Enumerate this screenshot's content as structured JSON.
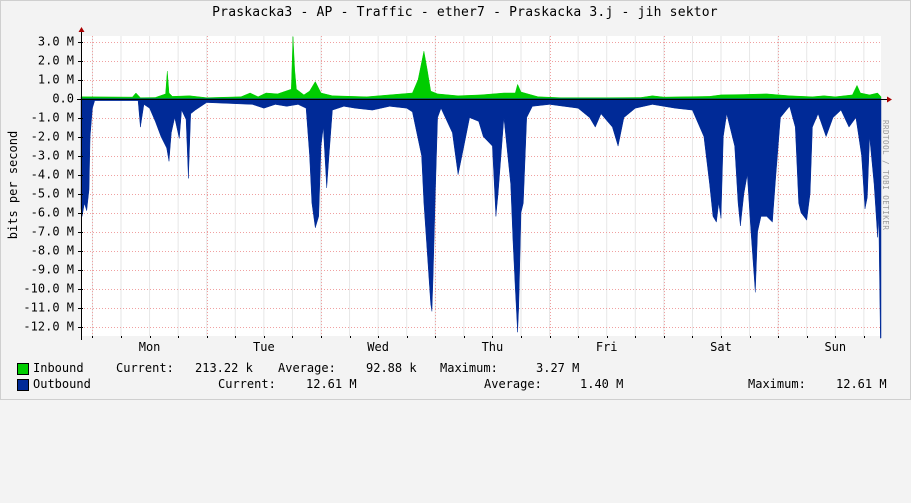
{
  "chart_data": {
    "type": "area",
    "title": "Praskacka3 - AP - Traffic - ether7 - Praskacka 3.j - jih sektor",
    "ylabel": "bits per second",
    "watermark": "RRDTOOL / TOBI OETIKER",
    "ylim": [
      -12.5,
      3.3
    ],
    "yticks": [
      {
        "value": 3,
        "label": "3.0 M"
      },
      {
        "value": 2,
        "label": "2.0 M"
      },
      {
        "value": 1,
        "label": "1.0 M"
      },
      {
        "value": 0,
        "label": "0.0"
      },
      {
        "value": -1,
        "label": "-1.0 M"
      },
      {
        "value": -2,
        "label": "-2.0 M"
      },
      {
        "value": -3,
        "label": "-3.0 M"
      },
      {
        "value": -4,
        "label": "-4.0 M"
      },
      {
        "value": -5,
        "label": "-5.0 M"
      },
      {
        "value": -6,
        "label": "-6.0 M"
      },
      {
        "value": -7,
        "label": "-7.0 M"
      },
      {
        "value": -8,
        "label": "-8.0 M"
      },
      {
        "value": -9,
        "label": "-9.0 M"
      },
      {
        "value": -10,
        "label": "-10.0 M"
      },
      {
        "value": -11,
        "label": "-11.0 M"
      },
      {
        "value": -12,
        "label": "-12.0 M"
      }
    ],
    "xlim": [
      0,
      7
    ],
    "days": [
      {
        "pos": 0.6,
        "label": "Mon"
      },
      {
        "pos": 1.6,
        "label": "Tue"
      },
      {
        "pos": 2.6,
        "label": "Wed"
      },
      {
        "pos": 3.6,
        "label": "Thu"
      },
      {
        "pos": 4.6,
        "label": "Fri"
      },
      {
        "pos": 5.6,
        "label": "Sat"
      },
      {
        "pos": 6.6,
        "label": "Sun"
      }
    ],
    "day_boundaries": [
      0.1,
      1.1,
      2.1,
      3.1,
      4.1,
      5.1,
      6.1
    ],
    "grid": true,
    "series": [
      {
        "name": "Inbound",
        "color": "#00cc00",
        "points": [
          [
            0,
            0.1
          ],
          [
            0.45,
            0.08
          ],
          [
            0.48,
            0.3
          ],
          [
            0.52,
            0.05
          ],
          [
            0.65,
            0.06
          ],
          [
            0.74,
            0.25
          ],
          [
            0.755,
            1.45
          ],
          [
            0.77,
            0.3
          ],
          [
            0.8,
            0.12
          ],
          [
            0.95,
            0.15
          ],
          [
            1.1,
            0.05
          ],
          [
            1.4,
            0.1
          ],
          [
            1.48,
            0.3
          ],
          [
            1.55,
            0.1
          ],
          [
            1.62,
            0.3
          ],
          [
            1.72,
            0.25
          ],
          [
            1.84,
            0.5
          ],
          [
            1.855,
            3.27
          ],
          [
            1.87,
            1.5
          ],
          [
            1.885,
            0.5
          ],
          [
            1.95,
            0.2
          ],
          [
            2.0,
            0.4
          ],
          [
            2.05,
            0.9
          ],
          [
            2.1,
            0.3
          ],
          [
            2.2,
            0.15
          ],
          [
            2.5,
            0.1
          ],
          [
            2.9,
            0.3
          ],
          [
            2.95,
            1.0
          ],
          [
            3.0,
            2.5
          ],
          [
            3.03,
            1.5
          ],
          [
            3.06,
            0.4
          ],
          [
            3.12,
            0.25
          ],
          [
            3.3,
            0.15
          ],
          [
            3.5,
            0.2
          ],
          [
            3.7,
            0.3
          ],
          [
            3.8,
            0.3
          ],
          [
            3.82,
            0.75
          ],
          [
            3.85,
            0.35
          ],
          [
            4.0,
            0.1
          ],
          [
            4.2,
            0.05
          ],
          [
            4.6,
            0.05
          ],
          [
            4.9,
            0.06
          ],
          [
            5.0,
            0.15
          ],
          [
            5.1,
            0.08
          ],
          [
            5.5,
            0.12
          ],
          [
            5.6,
            0.2
          ],
          [
            5.8,
            0.22
          ],
          [
            6.0,
            0.25
          ],
          [
            6.2,
            0.15
          ],
          [
            6.4,
            0.1
          ],
          [
            6.5,
            0.15
          ],
          [
            6.6,
            0.1
          ],
          [
            6.75,
            0.2
          ],
          [
            6.79,
            0.7
          ],
          [
            6.82,
            0.3
          ],
          [
            6.9,
            0.2
          ],
          [
            6.97,
            0.3
          ],
          [
            7.0,
            0.1
          ]
        ]
      },
      {
        "name": "Outbound",
        "color": "#002a97",
        "points": [
          [
            0,
            -5.8
          ],
          [
            0.01,
            -6.2
          ],
          [
            0.03,
            -5.5
          ],
          [
            0.05,
            -5.9
          ],
          [
            0.07,
            -4.8
          ],
          [
            0.08,
            -2.0
          ],
          [
            0.1,
            -0.5
          ],
          [
            0.12,
            -0.1
          ],
          [
            0.5,
            -0.1
          ],
          [
            0.52,
            -1.5
          ],
          [
            0.55,
            -0.3
          ],
          [
            0.6,
            -0.5
          ],
          [
            0.65,
            -1.2
          ],
          [
            0.7,
            -2.0
          ],
          [
            0.75,
            -2.6
          ],
          [
            0.77,
            -3.3
          ],
          [
            0.79,
            -1.8
          ],
          [
            0.82,
            -1.0
          ],
          [
            0.86,
            -2.1
          ],
          [
            0.88,
            -0.6
          ],
          [
            0.92,
            -1.1
          ],
          [
            0.94,
            -4.2
          ],
          [
            0.96,
            -0.8
          ],
          [
            1.0,
            -0.6
          ],
          [
            1.1,
            -0.2
          ],
          [
            1.5,
            -0.3
          ],
          [
            1.6,
            -0.5
          ],
          [
            1.7,
            -0.3
          ],
          [
            1.8,
            -0.4
          ],
          [
            1.9,
            -0.3
          ],
          [
            1.97,
            -0.5
          ],
          [
            2.0,
            -3.0
          ],
          [
            2.02,
            -5.5
          ],
          [
            2.05,
            -6.8
          ],
          [
            2.08,
            -6.2
          ],
          [
            2.1,
            -2.5
          ],
          [
            2.12,
            -1.5
          ],
          [
            2.15,
            -4.7
          ],
          [
            2.17,
            -3.0
          ],
          [
            2.2,
            -0.6
          ],
          [
            2.3,
            -0.4
          ],
          [
            2.4,
            -0.5
          ],
          [
            2.55,
            -0.6
          ],
          [
            2.7,
            -0.4
          ],
          [
            2.85,
            -0.5
          ],
          [
            2.9,
            -0.7
          ],
          [
            2.98,
            -3.0
          ],
          [
            3.0,
            -5.5
          ],
          [
            3.02,
            -7.2
          ],
          [
            3.04,
            -9.0
          ],
          [
            3.06,
            -10.8
          ],
          [
            3.07,
            -11.2
          ],
          [
            3.08,
            -9.5
          ],
          [
            3.1,
            -5.0
          ],
          [
            3.12,
            -1.0
          ],
          [
            3.15,
            -0.5
          ],
          [
            3.25,
            -1.8
          ],
          [
            3.3,
            -4.0
          ],
          [
            3.35,
            -2.5
          ],
          [
            3.4,
            -1.0
          ],
          [
            3.48,
            -1.2
          ],
          [
            3.52,
            -2.0
          ],
          [
            3.6,
            -2.5
          ],
          [
            3.63,
            -6.2
          ],
          [
            3.65,
            -5.0
          ],
          [
            3.7,
            -1.0
          ],
          [
            3.76,
            -4.5
          ],
          [
            3.78,
            -7.5
          ],
          [
            3.8,
            -10.0
          ],
          [
            3.82,
            -12.3
          ],
          [
            3.83,
            -11.0
          ],
          [
            3.85,
            -6.0
          ],
          [
            3.87,
            -5.5
          ],
          [
            3.9,
            -1.0
          ],
          [
            3.95,
            -0.4
          ],
          [
            4.1,
            -0.3
          ],
          [
            4.35,
            -0.5
          ],
          [
            4.45,
            -1.0
          ],
          [
            4.5,
            -1.5
          ],
          [
            4.55,
            -0.8
          ],
          [
            4.65,
            -1.5
          ],
          [
            4.7,
            -2.5
          ],
          [
            4.75,
            -1.0
          ],
          [
            4.85,
            -0.5
          ],
          [
            5.0,
            -0.3
          ],
          [
            5.2,
            -0.5
          ],
          [
            5.35,
            -0.6
          ],
          [
            5.45,
            -2.0
          ],
          [
            5.5,
            -4.5
          ],
          [
            5.53,
            -6.2
          ],
          [
            5.56,
            -6.5
          ],
          [
            5.58,
            -5.5
          ],
          [
            5.6,
            -6.3
          ],
          [
            5.62,
            -2.0
          ],
          [
            5.65,
            -0.8
          ],
          [
            5.72,
            -2.5
          ],
          [
            5.75,
            -5.5
          ],
          [
            5.77,
            -6.7
          ],
          [
            5.8,
            -5.0
          ],
          [
            5.83,
            -4.0
          ],
          [
            5.86,
            -6.8
          ],
          [
            5.88,
            -8.5
          ],
          [
            5.9,
            -10.2
          ],
          [
            5.92,
            -7.0
          ],
          [
            5.95,
            -6.2
          ],
          [
            6.0,
            -6.2
          ],
          [
            6.05,
            -6.5
          ],
          [
            6.08,
            -4.0
          ],
          [
            6.12,
            -1.0
          ],
          [
            6.2,
            -0.4
          ],
          [
            6.25,
            -1.5
          ],
          [
            6.28,
            -5.5
          ],
          [
            6.3,
            -6.0
          ],
          [
            6.35,
            -6.4
          ],
          [
            6.38,
            -5.0
          ],
          [
            6.4,
            -1.5
          ],
          [
            6.45,
            -0.8
          ],
          [
            6.52,
            -2.0
          ],
          [
            6.58,
            -1.0
          ],
          [
            6.65,
            -0.6
          ],
          [
            6.72,
            -1.5
          ],
          [
            6.78,
            -1.0
          ],
          [
            6.83,
            -3.0
          ],
          [
            6.86,
            -5.8
          ],
          [
            6.88,
            -5.2
          ],
          [
            6.9,
            -2.0
          ],
          [
            6.94,
            -4.5
          ],
          [
            6.97,
            -7.3
          ],
          [
            6.98,
            -6.0
          ],
          [
            6.995,
            -12.61
          ],
          [
            7.0,
            -12.61
          ]
        ]
      }
    ]
  },
  "legend": {
    "inbound": {
      "name": "Inbound",
      "current_label": "Current:",
      "current": "213.22 k",
      "average_label": "Average:",
      "average": "92.88 k",
      "maximum_label": "Maximum:",
      "maximum": "3.27 M"
    },
    "outbound": {
      "name": "Outbound",
      "current_label": "Current:",
      "current": "12.61 M",
      "average_label": "Average:",
      "average": "1.40 M",
      "maximum_label": "Maximum:",
      "maximum": "12.61 M"
    }
  }
}
